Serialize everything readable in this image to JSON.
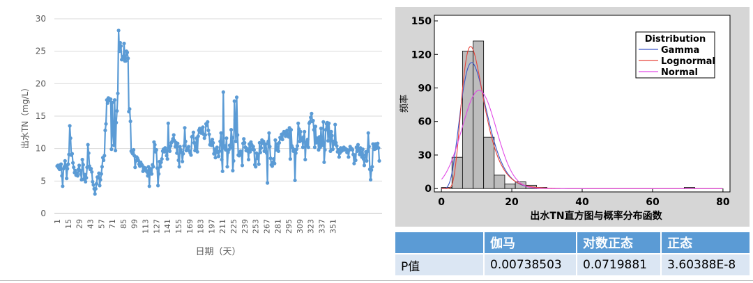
{
  "chart_data": [
    {
      "type": "line",
      "title": "",
      "xlabel": "日期（天）",
      "ylabel": "出水TN（mg/L）",
      "ylim": [
        0,
        30
      ],
      "yticks": [
        0,
        5,
        10,
        15,
        20,
        25,
        30
      ],
      "xticks": [
        "1",
        "15",
        "29",
        "43",
        "57",
        "71",
        "85",
        "99",
        "113",
        "127",
        "141",
        "155",
        "169",
        "183",
        "197",
        "211",
        "225",
        "239",
        "253",
        "267",
        "281",
        "295",
        "309",
        "323",
        "337",
        "351"
      ],
      "grid": true,
      "series": [
        {
          "color": "#5b9bd5",
          "x_start": 1,
          "values": [
            7.3,
            7.4,
            7.0,
            6.8,
            7.5,
            7.6,
            5.8,
            4.2,
            6.9,
            7.2,
            8.1,
            7.4,
            5.4,
            6.9,
            7.6,
            9.1,
            13.5,
            11.6,
            9.0,
            9.2,
            7.8,
            7.1,
            6.3,
            6.6,
            5.9,
            6.2,
            5.8,
            6.8,
            7.4,
            6.6,
            6.1,
            5.2,
            8.3,
            7.5,
            5.3,
            6.0,
            4.9,
            5.5,
            7.1,
            10.6,
            9.3,
            7.3,
            6.8,
            6.9,
            6.4,
            4.9,
            4.4,
            3.8,
            3.0,
            3.8,
            4.6,
            5.6,
            5.5,
            6.2,
            4.3,
            5.2,
            6.1,
            7.2,
            8.6,
            8.2,
            8.9,
            12.8,
            13.8,
            17.5,
            17.0,
            17.8,
            17.7,
            17.4,
            17.6,
            9.9,
            17.1,
            12.3,
            10.5,
            17.5,
            9.7,
            14.0,
            15.8,
            18.5,
            28.2,
            25.0,
            26.3,
            25.8,
            23.7,
            23.9,
            24.2,
            26.2,
            23.5,
            23.5,
            25.0,
            24.8,
            23.9,
            15.7,
            16.1,
            14.2,
            9.6,
            9.4,
            9.2,
            9.8,
            8.9,
            7.1,
            8.1,
            8.7,
            8.5,
            8.2,
            7.6,
            7.3,
            7.9,
            7.6,
            7.4,
            6.5,
            7.1,
            6.8,
            7.0,
            6.6,
            6.4,
            5.8,
            7.2,
            4.2,
            6.9,
            6.8,
            6.1,
            7.5,
            7.2,
            11.0,
            10.6,
            9.5,
            9.8,
            7.0,
            4.3,
            6.1,
            8.0,
            7.2,
            7.9,
            8.4,
            9.6,
            9.9,
            9.5,
            10.1,
            9.7,
            8.9,
            8.4,
            13.9,
            10.1,
            9.6,
            10.4,
            10.9,
            11.1,
            11.5,
            12.1,
            11.2,
            10.3,
            10.9,
            9.3,
            10.8,
            8.2,
            7.2,
            10.3,
            9.8,
            9.4,
            8.0,
            9.2,
            10.4,
            13.2,
            11.1,
            9.7,
            10.0,
            9.9,
            10.3,
            9.6,
            9.3,
            9.0,
            11.8,
            11.9,
            12.5,
            10.9,
            9.7,
            10.1,
            11.6,
            9.5,
            11.9,
            12.8,
            13.1,
            12.5,
            12.4,
            12.8,
            13.3,
            12.2,
            11.6,
            12.1,
            13.8,
            13.6,
            14.1,
            12.8,
            12.2,
            10.6,
            11.0,
            10.5,
            11.4,
            10.9,
            9.2,
            9.9,
            8.6,
            9.8,
            10.2,
            9.4,
            8.8,
            9.6,
            11.1,
            12.4,
            8.3,
            6.5,
            18.7,
            10.1,
            10.4,
            9.8,
            11.6,
            7.2,
            9.4,
            9.8,
            10.5,
            10.1,
            12.9,
            11.7,
            6.6,
            8.1,
            17.3,
            14.4,
            11.1,
            17.9,
            12.1,
            9.0,
            8.9,
            9.3,
            9.6,
            9.1,
            7.4,
            10.8,
            11.5,
            10.9,
            10.2,
            9.7,
            10.0,
            9.6,
            8.3,
            10.7,
            9.5,
            11.0,
            10.6,
            9.9,
            10.3,
            9.8,
            7.5,
            7.2,
            9.3,
            8.5,
            9.1,
            7.6,
            10.9,
            9.4,
            10.1,
            11.3,
            10.8,
            11.1,
            9.6,
            10.2,
            10.7,
            9.3,
            4.7,
            11.1,
            12.4,
            10.3,
            8.5,
            7.5,
            7.3,
            7.9,
            8.4,
            7.7,
            11.3,
            9.8,
            10.7,
            10.1,
            9.6,
            10.9,
            11.7,
            11.5,
            12.2,
            11.4,
            12.3,
            12.6,
            12.4,
            11.9,
            12.6,
            12.8,
            12.1,
            11.8,
            13.2,
            8.4,
            12.9,
            10.4,
            10.1,
            9.6,
            9.8,
            5.1,
            9.3,
            9.9,
            10.4,
            13.9,
            13.0,
            11.1,
            12.6,
            11.3,
            11.6,
            10.2,
            11.8,
            12.6,
            8.3,
            11.0,
            10.4,
            11.4,
            10.2,
            13.9,
            14.1,
            14.8,
            15.4,
            14.2,
            14.3,
            12.9,
            10.2,
            13.4,
            10.9,
            11.6,
            11.2,
            9.8,
            11.8,
            10.2,
            13.1,
            10.7,
            10.5,
            14.1,
            7.9,
            9.8,
            12.9,
            13.8,
            14.0,
            11.2,
            13.9,
            12.4,
            9.6,
            12.6,
            12.0,
            9.9,
            11.1,
            10.7,
            13.7,
            10.9,
            10.4,
            9.5,
            9.8,
            8.7,
            9.3,
            10.1,
            9.6,
            9.7,
            10.0,
            10.2,
            9.8,
            10.0,
            9.9,
            9.4,
            9.6,
            8.7,
            9.8,
            10.3,
            9.9,
            10.0,
            9.8,
            9.1,
            7.7,
            9.0,
            8.2,
            10.2,
            9.6,
            10.6,
            10.0,
            9.1,
            10.1,
            9.4,
            8.7,
            9.9,
            8.4,
            7.4,
            9.0,
            9.5,
            8.1,
            9.6,
            12.4,
            10.3,
            6.8,
            5.2,
            6.7,
            7.2,
            10.7,
            10.3,
            9.9,
            10.7,
            10.0,
            10.3,
            10.8,
            10.1,
            8.1
          ]
        }
      ]
    },
    {
      "type": "bar",
      "title": "",
      "xlabel": "出水TN直方图与概率分布函数",
      "ylabel": "频率",
      "xlim": [
        -2,
        82
      ],
      "ylim": [
        -3,
        155
      ],
      "xticks": [
        0,
        20,
        40,
        60,
        80
      ],
      "yticks": [
        0,
        30,
        60,
        90,
        120,
        150
      ],
      "legend_position": "top-right",
      "legend_title": "Distribution",
      "bin_width": 3,
      "bins_left": [
        0,
        3,
        6,
        9,
        12,
        15,
        18,
        21,
        24,
        27,
        30,
        33,
        36,
        39,
        42,
        45,
        48,
        51,
        54,
        57,
        60,
        63,
        66,
        69
      ],
      "counts": [
        1,
        28,
        123,
        132,
        46,
        12,
        4,
        6,
        3,
        1,
        0,
        0,
        0,
        0,
        0,
        0,
        0,
        0,
        0,
        0,
        0,
        0,
        0,
        1
      ],
      "bar_color": "#bdbdbd",
      "series": [
        {
          "name": "Gamma",
          "color": "#3a55c8",
          "curve": "gamma",
          "shape": 6.2,
          "scale": 1.65,
          "scale_factor": 1080
        },
        {
          "name": "Lognormal",
          "color": "#e8443a",
          "curve": "lognormal",
          "mu": 2.26,
          "sigma": 0.38,
          "scale_factor": 1080
        },
        {
          "name": "Normal",
          "color": "#e24ae6",
          "curve": "normal",
          "mean": 10.7,
          "sd": 4.9,
          "scale_factor": 1080
        }
      ]
    }
  ],
  "pvalue_table": {
    "headers": [
      "",
      "伽马",
      "对数正态",
      "正态"
    ],
    "row_label": "P值",
    "values": [
      "0.00738503",
      "0.0719881",
      "3.60388E-8"
    ]
  }
}
